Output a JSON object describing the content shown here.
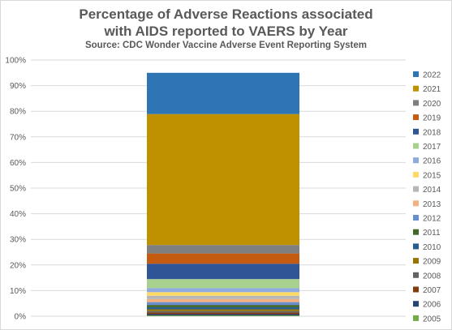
{
  "chart_data": {
    "type": "bar",
    "stacked": true,
    "title": "Percentage of Adverse Reactions associated",
    "title_line2": "with AIDS reported to VAERS by Year",
    "subtitle": "Source: CDC Wonder Vaccine Adverse Event Reporting System",
    "ylim": [
      0,
      100
    ],
    "y_ticks": [
      "0%",
      "10%",
      "20%",
      "30%",
      "40%",
      "50%",
      "60%",
      "70%",
      "80%",
      "90%",
      "100%"
    ],
    "grid": true,
    "legend_position": "right",
    "series": [
      {
        "name": "2005",
        "value": 0.3,
        "color": "#70ad47"
      },
      {
        "name": "2006",
        "value": 0.5,
        "color": "#264478"
      },
      {
        "name": "2007",
        "value": 0.6,
        "color": "#843c0c"
      },
      {
        "name": "2008",
        "value": 0.6,
        "color": "#636363"
      },
      {
        "name": "2009",
        "value": 0.7,
        "color": "#997300"
      },
      {
        "name": "2010",
        "value": 0.8,
        "color": "#255e91"
      },
      {
        "name": "2011",
        "value": 0.9,
        "color": "#43682b"
      },
      {
        "name": "2012",
        "value": 1.1,
        "color": "#698ed0"
      },
      {
        "name": "2013",
        "value": 1.2,
        "color": "#f4b183"
      },
      {
        "name": "2014",
        "value": 1.3,
        "color": "#b7b7b7"
      },
      {
        "name": "2015",
        "value": 1.4,
        "color": "#ffd966"
      },
      {
        "name": "2016",
        "value": 1.6,
        "color": "#8faadc"
      },
      {
        "name": "2017",
        "value": 3.5,
        "color": "#a9d18e"
      },
      {
        "name": "2018",
        "value": 6.0,
        "color": "#2f5597"
      },
      {
        "name": "2019",
        "value": 4.0,
        "color": "#c55a11"
      },
      {
        "name": "2020",
        "value": 3.3,
        "color": "#7f7f7f"
      },
      {
        "name": "2021",
        "value": 51.1,
        "color": "#bf9000"
      },
      {
        "name": "2022",
        "value": 16.1,
        "color": "#2e75b6"
      }
    ]
  }
}
